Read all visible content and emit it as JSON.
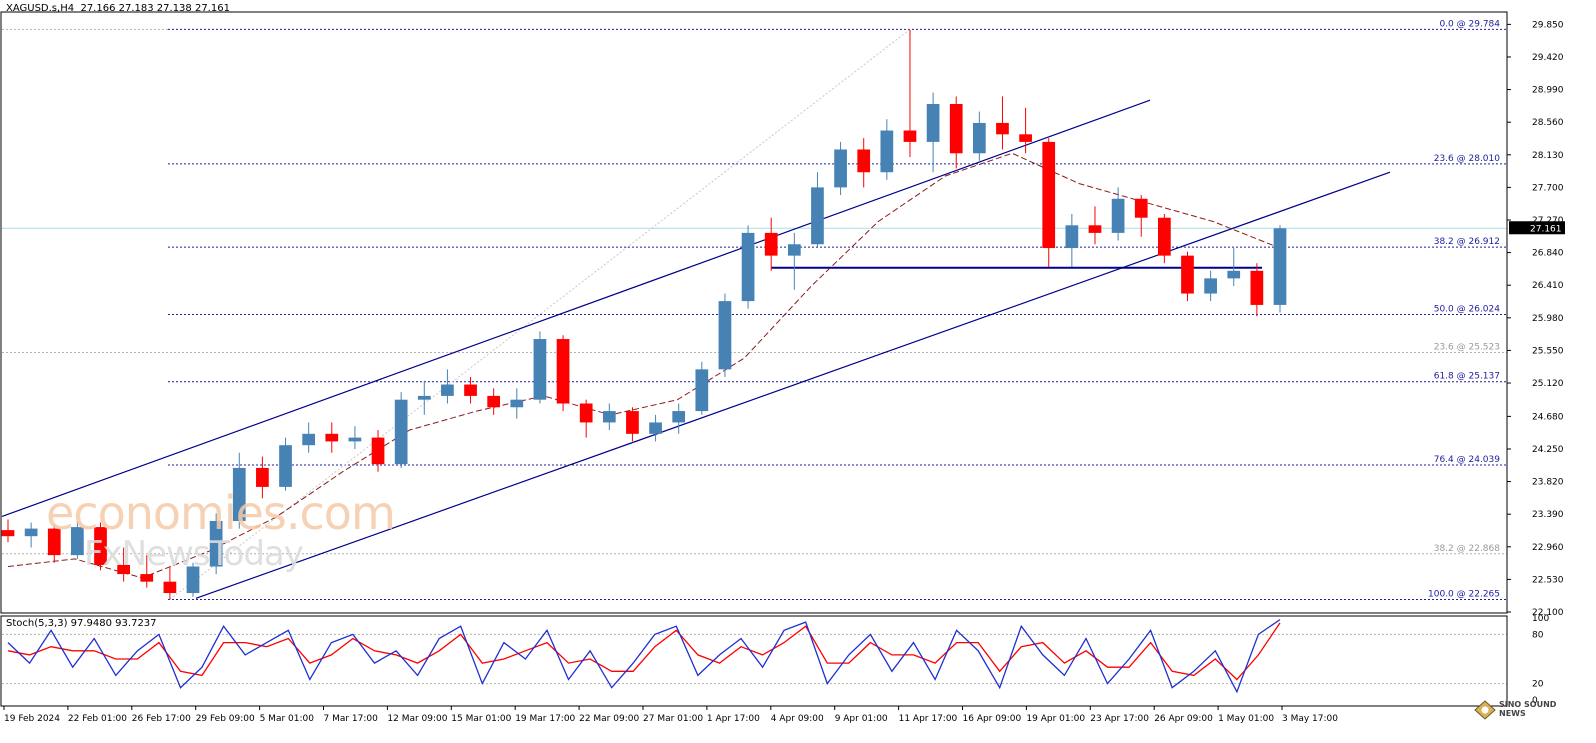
{
  "header": {
    "symbol": "XAGUSD.s,H4",
    "ohlc": "27.166 27.183 27.138 27.161"
  },
  "watermark": {
    "line1": "economies.com",
    "line2": "FxNewsToday"
  },
  "corner_logo": {
    "text": "SINO SOUND\nNEWS"
  },
  "colors": {
    "bull": "#4682b4",
    "bear": "#ff0000",
    "channel": "#00008b",
    "ma": "#8b1a1a",
    "fib": "#1c1c9e",
    "stoch_main": "#1f2fd0",
    "stoch_signal": "#ff0000",
    "current_price_line": "#a7dfe6"
  },
  "chart_data": {
    "type": "candlestick",
    "symbol": "XAGUSD.s",
    "timeframe": "H4",
    "price_axis": {
      "range": [
        22.1,
        30.0
      ],
      "ticks": [
        "29.850",
        "29.420",
        "28.990",
        "28.560",
        "28.130",
        "27.700",
        "27.270",
        "26.840",
        "26.410",
        "25.980",
        "25.550",
        "25.120",
        "24.680",
        "24.250",
        "23.820",
        "23.390",
        "22.960",
        "22.530",
        "22.100"
      ]
    },
    "current_price": "27.161",
    "time_axis": [
      "19 Feb 2024",
      "22 Feb 01:00",
      "26 Feb 17:00",
      "29 Feb 09:00",
      "5 Mar 01:00",
      "7 Mar 17:00",
      "12 Mar 09:00",
      "15 Mar 01:00",
      "19 Mar 17:00",
      "22 Mar 09:00",
      "27 Mar 01:00",
      "1 Apr 17:00",
      "4 Apr 09:00",
      "9 Apr 01:00",
      "11 Apr 17:00",
      "16 Apr 09:00",
      "19 Apr 01:00",
      "23 Apr 17:00",
      "26 Apr 09:00",
      "1 May 01:00",
      "3 May 17:00"
    ],
    "fibonacci_primary": [
      {
        "label": "0.0 @ 29.784",
        "price": 29.784
      },
      {
        "label": "23.6 @ 28.010",
        "price": 28.01
      },
      {
        "label": "38.2 @ 26.912",
        "price": 26.912
      },
      {
        "label": "50.0 @ 26.024",
        "price": 26.024
      },
      {
        "label": "61.8 @ 25.137",
        "price": 25.137
      },
      {
        "label": "76.4 @ 24.039",
        "price": 24.039
      },
      {
        "label": "100.0 @ 22.265",
        "price": 22.265
      }
    ],
    "fibonacci_secondary": [
      {
        "label": "23.6 @ 25.523",
        "price": 25.523
      },
      {
        "label": "38.2 @ 22.868",
        "price": 22.868
      }
    ],
    "horizontal_support": 26.64,
    "candles": [
      {
        "t": "19 Feb",
        "o": 23.18,
        "h": 23.32,
        "l": 23.02,
        "c": 23.1
      },
      {
        "t": "20 Feb",
        "o": 23.1,
        "h": 23.28,
        "l": 22.95,
        "c": 23.2
      },
      {
        "t": "21 Feb",
        "o": 23.2,
        "h": 23.25,
        "l": 22.75,
        "c": 22.85
      },
      {
        "t": "22 Feb",
        "o": 22.85,
        "h": 23.3,
        "l": 22.8,
        "c": 23.22
      },
      {
        "t": "23 Feb",
        "o": 23.22,
        "h": 23.28,
        "l": 22.65,
        "c": 22.72
      },
      {
        "t": "24 Feb",
        "o": 22.72,
        "h": 22.95,
        "l": 22.5,
        "c": 22.6
      },
      {
        "t": "26 Feb",
        "o": 22.6,
        "h": 22.85,
        "l": 22.42,
        "c": 22.5
      },
      {
        "t": "27 Feb",
        "o": 22.5,
        "h": 22.7,
        "l": 22.27,
        "c": 22.35
      },
      {
        "t": "28 Feb",
        "o": 22.35,
        "h": 22.75,
        "l": 22.3,
        "c": 22.7
      },
      {
        "t": "29 Feb",
        "o": 22.7,
        "h": 23.4,
        "l": 22.6,
        "c": 23.3
      },
      {
        "t": "1 Mar",
        "o": 23.3,
        "h": 24.2,
        "l": 23.2,
        "c": 24.0
      },
      {
        "t": "4 Mar",
        "o": 24.0,
        "h": 24.15,
        "l": 23.6,
        "c": 23.75
      },
      {
        "t": "5 Mar",
        "o": 23.75,
        "h": 24.4,
        "l": 23.7,
        "c": 24.3
      },
      {
        "t": "6 Mar",
        "o": 24.3,
        "h": 24.6,
        "l": 24.2,
        "c": 24.45
      },
      {
        "t": "7 Mar",
        "o": 24.45,
        "h": 24.6,
        "l": 24.2,
        "c": 24.35
      },
      {
        "t": "8 Mar",
        "o": 24.35,
        "h": 24.55,
        "l": 24.25,
        "c": 24.4
      },
      {
        "t": "11 Mar",
        "o": 24.4,
        "h": 24.5,
        "l": 23.95,
        "c": 24.05
      },
      {
        "t": "12 Mar",
        "o": 24.05,
        "h": 25.0,
        "l": 24.0,
        "c": 24.9
      },
      {
        "t": "13 Mar",
        "o": 24.9,
        "h": 25.15,
        "l": 24.7,
        "c": 24.95
      },
      {
        "t": "14 Mar",
        "o": 24.95,
        "h": 25.3,
        "l": 24.85,
        "c": 25.1
      },
      {
        "t": "15 Mar",
        "o": 25.1,
        "h": 25.2,
        "l": 24.85,
        "c": 24.95
      },
      {
        "t": "18 Mar",
        "o": 24.95,
        "h": 25.05,
        "l": 24.7,
        "c": 24.8
      },
      {
        "t": "19 Mar",
        "o": 24.8,
        "h": 25.05,
        "l": 24.65,
        "c": 24.9
      },
      {
        "t": "20 Mar",
        "o": 24.9,
        "h": 25.8,
        "l": 24.85,
        "c": 25.7
      },
      {
        "t": "21 Mar",
        "o": 25.7,
        "h": 25.75,
        "l": 24.75,
        "c": 24.85
      },
      {
        "t": "22 Mar",
        "o": 24.85,
        "h": 24.9,
        "l": 24.4,
        "c": 24.6
      },
      {
        "t": "25 Mar",
        "o": 24.6,
        "h": 24.85,
        "l": 24.5,
        "c": 24.75
      },
      {
        "t": "26 Mar",
        "o": 24.75,
        "h": 24.8,
        "l": 24.35,
        "c": 24.45
      },
      {
        "t": "27 Mar",
        "o": 24.45,
        "h": 24.7,
        "l": 24.35,
        "c": 24.6
      },
      {
        "t": "28 Mar",
        "o": 24.6,
        "h": 24.85,
        "l": 24.45,
        "c": 24.75
      },
      {
        "t": "1 Apr",
        "o": 24.75,
        "h": 25.4,
        "l": 24.7,
        "c": 25.3
      },
      {
        "t": "2 Apr",
        "o": 25.3,
        "h": 26.3,
        "l": 25.2,
        "c": 26.2
      },
      {
        "t": "3 Apr",
        "o": 26.2,
        "h": 27.2,
        "l": 26.1,
        "c": 27.1
      },
      {
        "t": "4 Apr",
        "o": 27.1,
        "h": 27.3,
        "l": 26.6,
        "c": 26.8
      },
      {
        "t": "5 Apr",
        "o": 26.8,
        "h": 27.1,
        "l": 26.35,
        "c": 26.95
      },
      {
        "t": "8 Apr",
        "o": 26.95,
        "h": 27.9,
        "l": 26.9,
        "c": 27.7
      },
      {
        "t": "9 Apr",
        "o": 27.7,
        "h": 28.3,
        "l": 27.6,
        "c": 28.2
      },
      {
        "t": "10 Apr",
        "o": 28.2,
        "h": 28.35,
        "l": 27.7,
        "c": 27.9
      },
      {
        "t": "11 Apr",
        "o": 27.9,
        "h": 28.6,
        "l": 27.8,
        "c": 28.45
      },
      {
        "t": "12 Apr",
        "o": 28.45,
        "h": 29.78,
        "l": 28.1,
        "c": 28.3
      },
      {
        "t": "15 Apr",
        "o": 28.3,
        "h": 28.95,
        "l": 27.9,
        "c": 28.8
      },
      {
        "t": "16 Apr",
        "o": 28.8,
        "h": 28.9,
        "l": 27.95,
        "c": 28.15
      },
      {
        "t": "17 Apr",
        "o": 28.15,
        "h": 28.7,
        "l": 28.05,
        "c": 28.55
      },
      {
        "t": "18 Apr",
        "o": 28.55,
        "h": 28.9,
        "l": 28.2,
        "c": 28.4
      },
      {
        "t": "19 Apr",
        "o": 28.4,
        "h": 28.75,
        "l": 28.15,
        "c": 28.3
      },
      {
        "t": "22 Apr",
        "o": 28.3,
        "h": 28.35,
        "l": 26.65,
        "c": 26.9
      },
      {
        "t": "23 Apr",
        "o": 26.9,
        "h": 27.35,
        "l": 26.65,
        "c": 27.2
      },
      {
        "t": "24 Apr",
        "o": 27.2,
        "h": 27.45,
        "l": 26.95,
        "c": 27.1
      },
      {
        "t": "25 Apr",
        "o": 27.1,
        "h": 27.7,
        "l": 27.0,
        "c": 27.55
      },
      {
        "t": "26 Apr",
        "o": 27.55,
        "h": 27.6,
        "l": 27.05,
        "c": 27.3
      },
      {
        "t": "29 Apr",
        "o": 27.3,
        "h": 27.35,
        "l": 26.7,
        "c": 26.8
      },
      {
        "t": "30 Apr",
        "o": 26.8,
        "h": 26.85,
        "l": 26.2,
        "c": 26.3
      },
      {
        "t": "1 May",
        "o": 26.3,
        "h": 26.6,
        "l": 26.2,
        "c": 26.5
      },
      {
        "t": "2 May",
        "o": 26.5,
        "h": 26.9,
        "l": 26.4,
        "c": 26.6
      },
      {
        "t": "2 May b",
        "o": 26.6,
        "h": 26.7,
        "l": 26.0,
        "c": 26.15
      },
      {
        "t": "3 May",
        "o": 26.15,
        "h": 27.2,
        "l": 26.05,
        "c": 27.16
      }
    ],
    "moving_average": [
      {
        "t": "19 Feb",
        "v": 22.7
      },
      {
        "t": "26 Feb",
        "v": 22.8
      },
      {
        "t": "29 Feb",
        "v": 22.55
      },
      {
        "t": "5 Mar",
        "v": 22.9
      },
      {
        "t": "7 Mar",
        "v": 23.35
      },
      {
        "t": "12 Mar",
        "v": 23.95
      },
      {
        "t": "15 Mar",
        "v": 24.5
      },
      {
        "t": "19 Mar",
        "v": 24.75
      },
      {
        "t": "22 Mar",
        "v": 24.95
      },
      {
        "t": "27 Mar",
        "v": 24.7
      },
      {
        "t": "1 Apr",
        "v": 24.9
      },
      {
        "t": "4 Apr",
        "v": 25.45
      },
      {
        "t": "9 Apr",
        "v": 26.4
      },
      {
        "t": "11 Apr",
        "v": 27.25
      },
      {
        "t": "16 Apr",
        "v": 27.85
      },
      {
        "t": "19 Apr",
        "v": 28.15
      },
      {
        "t": "23 Apr",
        "v": 27.75
      },
      {
        "t": "26 Apr",
        "v": 27.5
      },
      {
        "t": "1 May",
        "v": 27.25
      },
      {
        "t": "3 May",
        "v": 26.9
      }
    ],
    "stochastic": {
      "label": "Stoch(5,3,3) 97.9480 93.7237",
      "range": [
        0,
        100
      ],
      "levels": [
        20,
        80
      ],
      "ticks": [
        "100",
        "80",
        "20",
        "0"
      ],
      "main": [
        70,
        45,
        85,
        40,
        75,
        30,
        60,
        80,
        15,
        40,
        90,
        55,
        70,
        85,
        25,
        70,
        80,
        45,
        60,
        30,
        75,
        90,
        20,
        70,
        50,
        85,
        25,
        60,
        15,
        45,
        80,
        90,
        30,
        55,
        75,
        40,
        85,
        95,
        20,
        55,
        80,
        35,
        70,
        25,
        85,
        60,
        15,
        90,
        55,
        30,
        75,
        20,
        50,
        85,
        15,
        35,
        60,
        10,
        80,
        98
      ],
      "signal": [
        60,
        55,
        65,
        60,
        60,
        50,
        50,
        70,
        35,
        30,
        70,
        70,
        65,
        75,
        45,
        55,
        75,
        60,
        55,
        45,
        60,
        80,
        45,
        50,
        60,
        70,
        45,
        50,
        35,
        35,
        65,
        85,
        55,
        45,
        65,
        55,
        70,
        90,
        45,
        45,
        70,
        55,
        55,
        45,
        70,
        70,
        35,
        65,
        70,
        45,
        60,
        40,
        40,
        70,
        35,
        30,
        50,
        25,
        55,
        94
      ]
    }
  }
}
